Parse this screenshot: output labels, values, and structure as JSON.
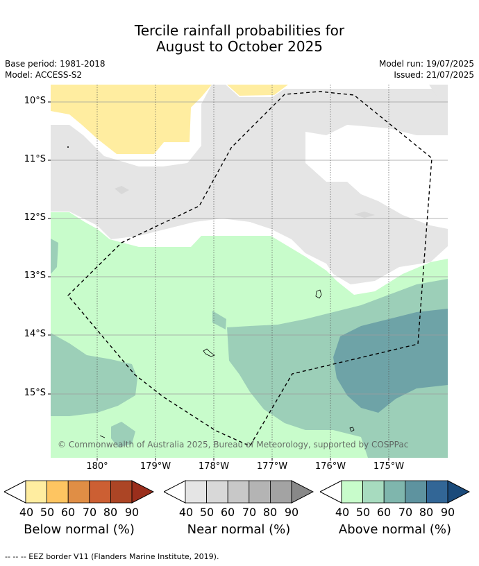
{
  "title": {
    "line1": "Tercile rainfall probabilities for",
    "line2": "August to October 2025"
  },
  "meta": {
    "base_period": "Base period: 1981-2018",
    "model": "Model: ACCESS-S2",
    "model_run": "Model run: 19/07/2025",
    "issued": "Issued: 21/07/2025"
  },
  "map": {
    "lat_labels": [
      "10°S",
      "11°S",
      "12°S",
      "13°S",
      "14°S",
      "15°S"
    ],
    "lon_labels": [
      "180°",
      "179°W",
      "178°W",
      "177°W",
      "176°W",
      "175°W"
    ],
    "copyright": "© Commonwealth of Australia 2025, Bureau of Meteorology, supported by COSPPac",
    "eez_line_style": "dashed black",
    "coastline_style": "thin black outline"
  },
  "legends": [
    {
      "title": "Below normal (%)",
      "ticks": [
        "40",
        "50",
        "60",
        "70",
        "80",
        "90"
      ],
      "colors": [
        "#ffeda0",
        "#fec561",
        "#e08e45",
        "#cc5f33",
        "#ac4525",
        "#9a2e1c"
      ]
    },
    {
      "title": "Near normal (%)",
      "ticks": [
        "40",
        "50",
        "60",
        "70",
        "80",
        "90"
      ],
      "colors": [
        "#e5e5e5",
        "#d8d8d8",
        "#c8c8c8",
        "#b4b4b4",
        "#a3a3a3",
        "#888888"
      ]
    },
    {
      "title": "Above normal (%)",
      "ticks": [
        "40",
        "50",
        "60",
        "70",
        "80",
        "90"
      ],
      "colors": [
        "#c8fccb",
        "#a7dbbf",
        "#7fb6ad",
        "#5e939f",
        "#326696",
        "#1a4a7a"
      ]
    }
  ],
  "footnote": "--  --  -- EEZ border V11 (Flanders Marine Institute, 2019)."
}
